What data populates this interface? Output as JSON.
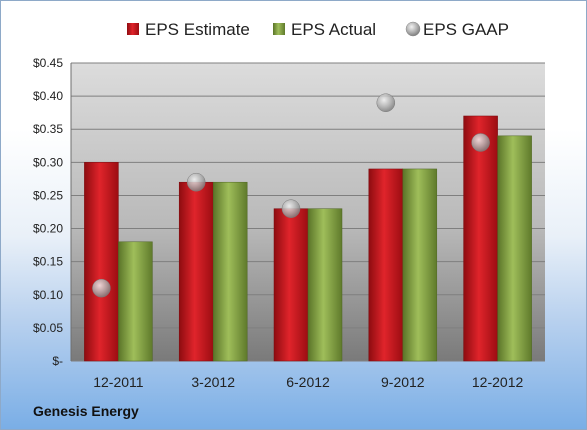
{
  "company_name": "Genesis Energy",
  "colors": {
    "estimate": "#c8141b",
    "actual": "#7d9c3c",
    "gaap": "#a8a8a8"
  },
  "chart_data": {
    "type": "bar",
    "categories": [
      "12-2011",
      "3-2012",
      "6-2012",
      "9-2012",
      "12-2012"
    ],
    "series": [
      {
        "name": "EPS Estimate",
        "values": [
          0.3,
          0.27,
          0.23,
          0.29,
          0.37
        ]
      },
      {
        "name": "EPS Actual",
        "values": [
          0.18,
          0.27,
          0.23,
          0.29,
          0.34
        ]
      },
      {
        "name": "EPS GAAP",
        "type": "scatter",
        "values": [
          0.11,
          0.27,
          0.23,
          0.39,
          0.33
        ]
      }
    ],
    "ylim": [
      0,
      0.45
    ],
    "yticks": [
      0,
      0.05,
      0.1,
      0.15,
      0.2,
      0.25,
      0.3,
      0.35,
      0.4,
      0.45
    ],
    "ytick_labels": [
      "$-",
      "$0.05",
      "$0.10",
      "$0.15",
      "$0.20",
      "$0.25",
      "$0.30",
      "$0.35",
      "$0.40",
      "$0.45"
    ],
    "legend_position": "top",
    "grid": true
  }
}
